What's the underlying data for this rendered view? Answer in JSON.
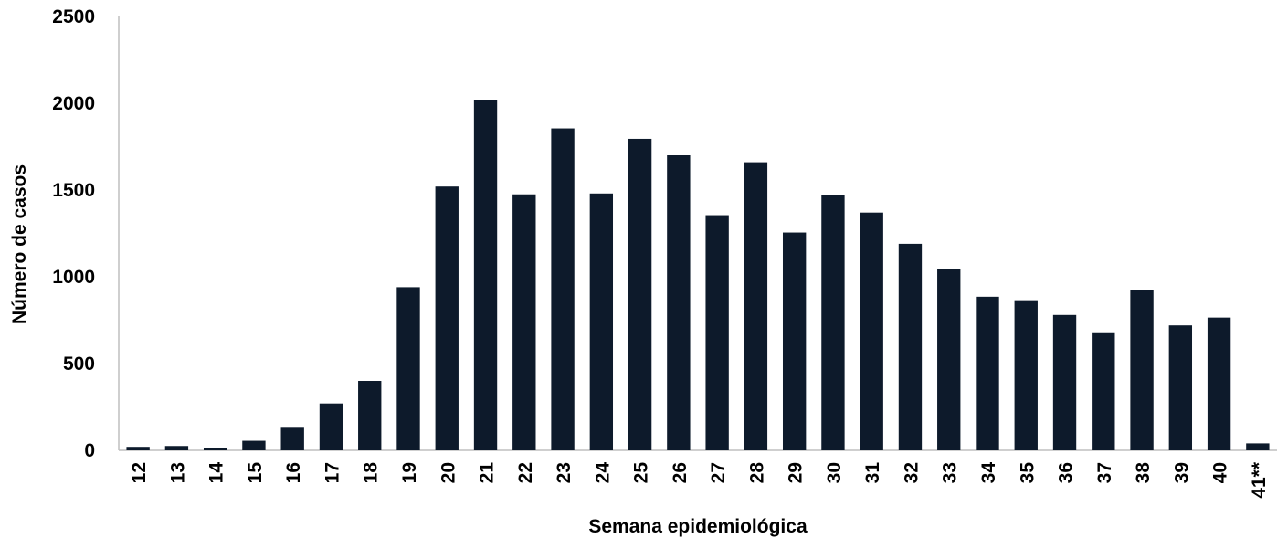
{
  "chart_data": {
    "type": "bar",
    "title": "",
    "xlabel": "Semana epidemiológica",
    "ylabel": "Número de casos",
    "categories": [
      "12",
      "13",
      "14",
      "15",
      "16",
      "17",
      "18",
      "19",
      "20",
      "21",
      "22",
      "23",
      "24",
      "25",
      "26",
      "27",
      "28",
      "29",
      "30",
      "31",
      "32",
      "33",
      "34",
      "35",
      "36",
      "37",
      "38",
      "39",
      "40",
      "41**"
    ],
    "values": [
      20,
      25,
      15,
      55,
      130,
      270,
      400,
      940,
      1520,
      2020,
      1475,
      1855,
      1480,
      1795,
      1700,
      1355,
      1660,
      1255,
      1470,
      1370,
      1190,
      1045,
      885,
      865,
      780,
      675,
      925,
      720,
      765,
      40
    ],
    "ylim": [
      0,
      2500
    ],
    "yticks": [
      0,
      500,
      1000,
      1500,
      2000,
      2500
    ],
    "bar_color": "#0d1a2b",
    "grid": false,
    "legend": "none"
  }
}
